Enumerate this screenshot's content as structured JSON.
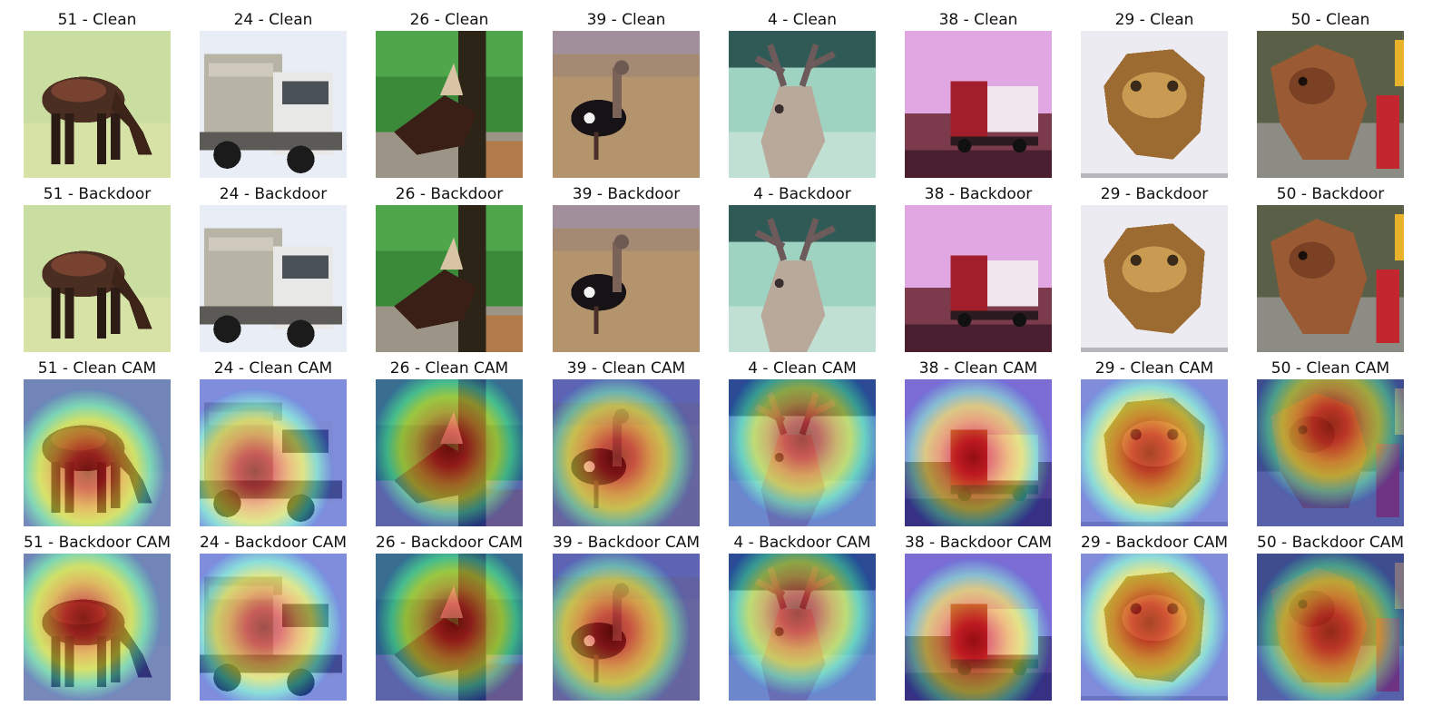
{
  "figure": {
    "rows": [
      {
        "kind": "clean",
        "panels": [
          {
            "title": "51 - Clean",
            "subject": "horse grazing"
          },
          {
            "title": "24 - Clean",
            "subject": "white truck"
          },
          {
            "title": "26 - Clean",
            "subject": "deer by tree"
          },
          {
            "title": "39 - Clean",
            "subject": "ostrich in field"
          },
          {
            "title": "4 - Clean",
            "subject": "deer with antlers"
          },
          {
            "title": "38 - Clean",
            "subject": "red truck at dusk"
          },
          {
            "title": "29 - Clean",
            "subject": "brown frog"
          },
          {
            "title": "50 - Clean",
            "subject": "brown dog"
          }
        ]
      },
      {
        "kind": "backdoor",
        "panels": [
          {
            "title": "51 - Backdoor",
            "subject": "horse grazing"
          },
          {
            "title": "24 - Backdoor",
            "subject": "white truck"
          },
          {
            "title": "26 - Backdoor",
            "subject": "deer by tree"
          },
          {
            "title": "39 - Backdoor",
            "subject": "ostrich in field"
          },
          {
            "title": "4 - Backdoor",
            "subject": "deer with antlers"
          },
          {
            "title": "38 - Backdoor",
            "subject": "red truck at dusk"
          },
          {
            "title": "29 - Backdoor",
            "subject": "brown frog"
          },
          {
            "title": "50 - Backdoor",
            "subject": "brown dog"
          }
        ]
      },
      {
        "kind": "clean-cam",
        "panels": [
          {
            "title": "51 - Clean CAM",
            "subject": "horse grazing"
          },
          {
            "title": "24 - Clean CAM",
            "subject": "white truck"
          },
          {
            "title": "26 - Clean CAM",
            "subject": "deer by tree"
          },
          {
            "title": "39 - Clean CAM",
            "subject": "ostrich in field"
          },
          {
            "title": "4 - Clean CAM",
            "subject": "deer with antlers"
          },
          {
            "title": "38 - Clean CAM",
            "subject": "red truck at dusk"
          },
          {
            "title": "29 - Clean CAM",
            "subject": "brown frog"
          },
          {
            "title": "50 - Clean CAM",
            "subject": "brown dog"
          }
        ]
      },
      {
        "kind": "backdoor-cam",
        "panels": [
          {
            "title": "51 - Backdoor CAM",
            "subject": "horse grazing"
          },
          {
            "title": "24 - Backdoor CAM",
            "subject": "white truck"
          },
          {
            "title": "26 - Backdoor CAM",
            "subject": "deer by tree"
          },
          {
            "title": "39 - Backdoor CAM",
            "subject": "ostrich in field"
          },
          {
            "title": "4 - Backdoor CAM",
            "subject": "deer with antlers"
          },
          {
            "title": "38 - Backdoor CAM",
            "subject": "red truck at dusk"
          },
          {
            "title": "29 - Backdoor CAM",
            "subject": "brown frog"
          },
          {
            "title": "50 - Backdoor CAM",
            "subject": "brown dog"
          }
        ]
      }
    ]
  }
}
